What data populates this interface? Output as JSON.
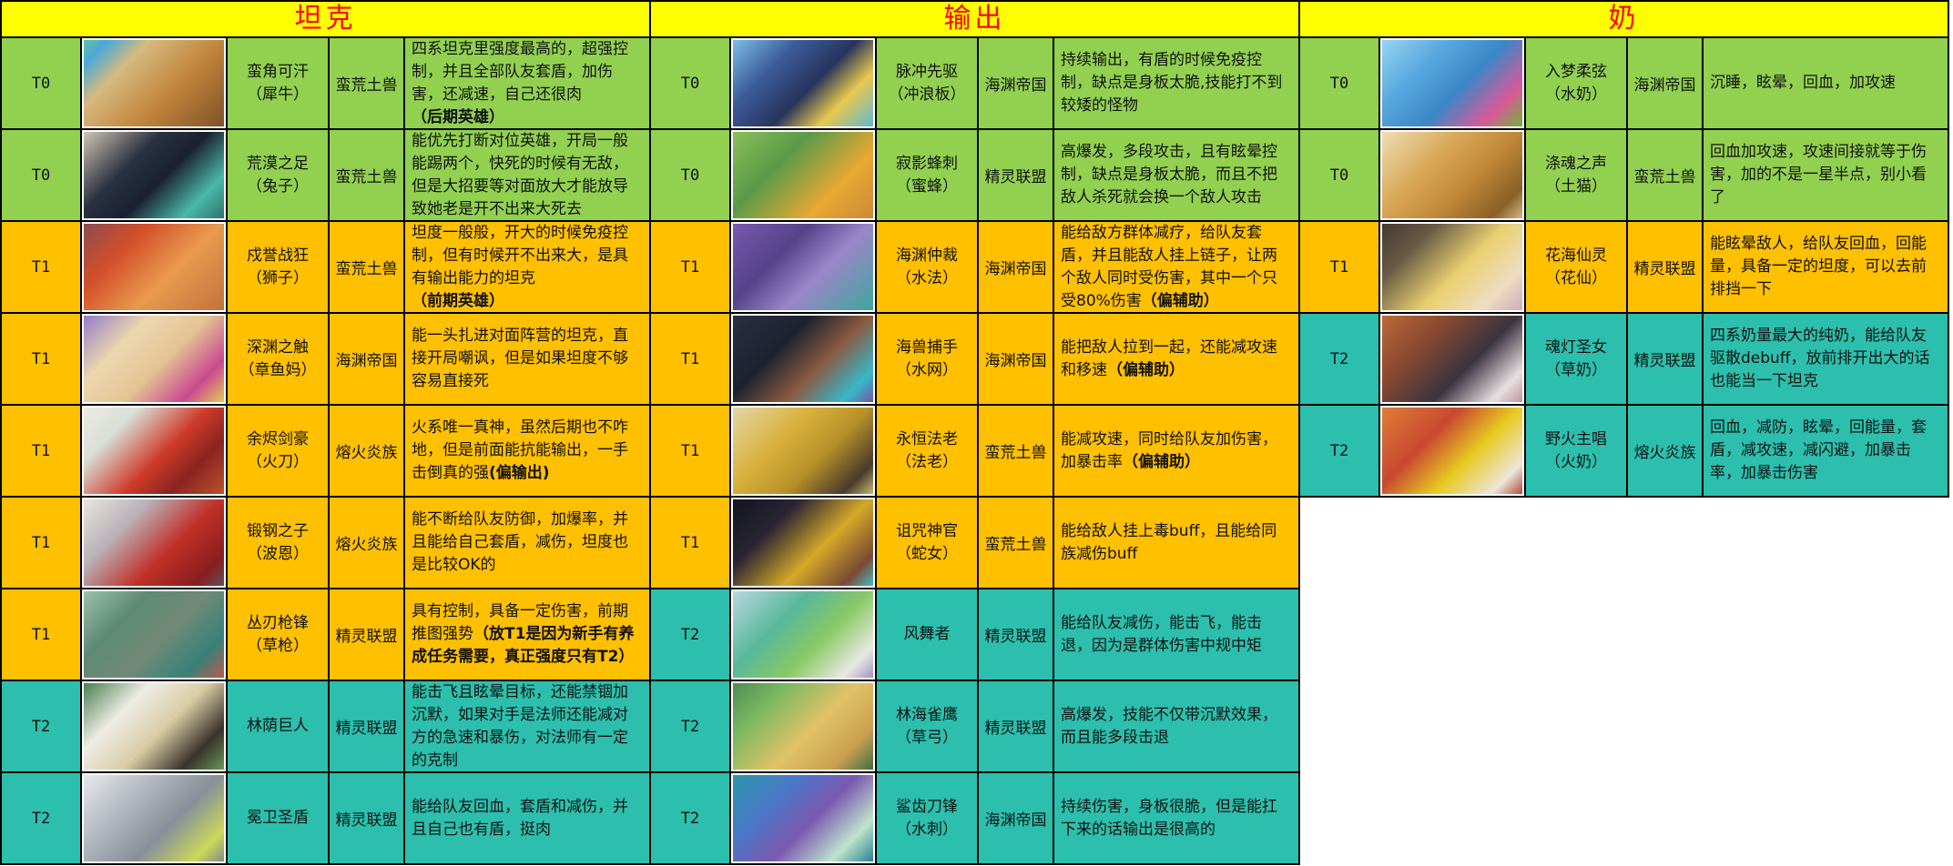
{
  "colors": {
    "t0": "#92D050",
    "t1": "#FFC000",
    "t2": "#2CBFAD",
    "header-bg": "#FFFF00",
    "header-text": "#FF0000",
    "grid-border": "#000000",
    "text": "#111111",
    "page-bg": "#FFFFFF"
  },
  "sections": [
    {
      "title": "坦克",
      "rows": [
        {
          "tier": "T0",
          "name": "蛮角可汗",
          "alias": "（犀牛）",
          "faction": "蛮荒土兽",
          "desc": "四系坦克里强度最高的，超强控制，并且全部队友套盾，加伤害，还减速，自己还很肉\n",
          "desc_bold": "（后期英雄）",
          "portrait_css": "background:linear-gradient(135deg,#63c79b 0%,#4aa9d8 12%,#d6b97e 30%,#c2863d 60%,#7d5026 100%)"
        },
        {
          "tier": "T0",
          "name": "荒漠之足",
          "alias": "（兔子）",
          "faction": "蛮荒土兽",
          "desc": "能优先打断对位英雄，开局一般能踢两个，快死的时候有无敌，但是大招要等对面放大才能放导致她老是开不出来大死去",
          "desc_bold": "",
          "portrait_css": "background:linear-gradient(135deg,#d8cdb9 0%,#2a3140 35%,#1a2030 55%,#49b8ab 80%,#2e6e66 100%)"
        },
        {
          "tier": "T1",
          "name": "戍誉战狂",
          "alias": "（狮子）",
          "faction": "蛮荒土兽",
          "desc": "坦度一般般，开大的时候免疫控制，但有时候开不出来大，是具有输出能力的坦克\n",
          "desc_bold": "（前期英雄）",
          "portrait_css": "background:linear-gradient(135deg,#8a4a52 0%,#d4502a 30%,#e89a4e 60%,#c2703a 100%)"
        },
        {
          "tier": "T1",
          "name": "深渊之触",
          "alias": "（章鱼妈）",
          "faction": "海渊帝国",
          "desc": "能一头扎进对面阵营的坦克，直接开局嘲讽，但是如果坦度不够容易直接死",
          "desc_bold": "",
          "portrait_css": "background:linear-gradient(135deg,#8f77c9 0%,#ecd7ae 30%,#e3c592 55%,#c9498f 80%,#e8d24e 100%)"
        },
        {
          "tier": "T1",
          "name": "余烬剑豪",
          "alias": "（火刀）",
          "faction": "熔火炎族",
          "desc": "火系唯一真神，虽然后期也不咋地，但是前面能抗能输出，一手击倒真的强",
          "desc_bold": "(偏输出)",
          "portrait_css": "background:linear-gradient(135deg,#f0ebe0 0%,#d8dfd8 25%,#cf3b2a 55%,#8a2420 75%,#c2542c 100%)"
        },
        {
          "tier": "T1",
          "name": "锻钢之子",
          "alias": "（波恩）",
          "faction": "熔火炎族",
          "desc": "能不断给队友防御，加爆率，并且能给自己套盾，减伤，坦度也是比较OK的",
          "desc_bold": "",
          "portrait_css": "background:linear-gradient(135deg,#ece8e0 0%,#b8b2b8 30%,#c03028 60%,#8a1e1e 85%,#5c5560 100%)"
        },
        {
          "tier": "T1",
          "name": "丛刃枪锋",
          "alias": "（草枪）",
          "faction": "精灵联盟",
          "desc": "具有控制，具备一定伤害，前期推图强势",
          "desc_bold": "（放T1是因为新手有养成任务需要，真正强度只有T2）",
          "portrait_css": "background:linear-gradient(135deg,#9ec4ad 0%,#5d8a74 30%,#728a78 55%,#388278 80%,#c25848 100%)"
        },
        {
          "tier": "T2",
          "name": "林荫巨人",
          "alias": "",
          "faction": "精灵联盟",
          "desc": "能击飞且眩晕目标，还能禁锢加沉默，如果对手是法师还能减对方的急速和暴伤，对法师有一定的克制",
          "desc_bold": "",
          "portrait_css": "background:linear-gradient(135deg,#3d7a48 0%,#efece4 30%,#d9cca6 55%,#3a332c 80%,#6aa05a 100%)"
        },
        {
          "tier": "T2",
          "name": "冕卫圣盾",
          "alias": "",
          "faction": "精灵联盟",
          "desc": "能给队友回血，套盾和减伤，并且自己也有盾，挺肉",
          "desc_bold": "",
          "portrait_css": "background:linear-gradient(135deg,#e9ebee 0%,#aeb4bc 35%,#888f98 60%,#c9d85a 85%,#7a828c 100%)"
        }
      ]
    },
    {
      "title": "输出",
      "rows": [
        {
          "tier": "T0",
          "name": "脉冲先驱",
          "alias": "（冲浪板）",
          "faction": "海渊帝国",
          "desc": "持续输出，有盾的时候免疫控制，缺点是身板太脆,技能打不到较矮的怪物",
          "desc_bold": "",
          "portrait_css": "background:linear-gradient(135deg,#7fc3e8 0%,#3c5c9a 30%,#28345c 55%,#e8c84e 75%,#57b8d8 100%)"
        },
        {
          "tier": "T0",
          "name": "寂影蜂刺",
          "alias": "（蜜蜂）",
          "faction": "精灵联盟",
          "desc": "高爆发，多段攻击，且有眩晕控制，缺点是身板太脆，而且不把敌人杀死就会换一个敌人攻击",
          "desc_bold": "",
          "portrait_css": "background:linear-gradient(135deg,#8cc05c 0%,#5a9a48 35%,#e8a832 70%,#c8883a 100%)"
        },
        {
          "tier": "T1",
          "name": "海渊仲裁",
          "alias": "（水法）",
          "faction": "海渊帝国",
          "desc": "能给敌方群体减疗，给队友套盾，并且能敌人挂上链子，让两个敌人同时受伤害，其中一个只受80%伤害",
          "desc_bold": "（偏辅助）",
          "portrait_css": "background:linear-gradient(135deg,#7a5ab0 0%,#54448a 35%,#9a86c8 60%,#3aa89c 100%)"
        },
        {
          "tier": "T1",
          "name": "海兽捕手",
          "alias": "（水网）",
          "faction": "海渊帝国",
          "desc": "能把敌人拉到一起，还能减攻速和移速",
          "desc_bold": "（偏辅助）",
          "portrait_css": "background:linear-gradient(135deg,#2a3040 0%,#1c2230 35%,#8a5a40 60%,#38b8c8 85%,#7a4aa0 100%)"
        },
        {
          "tier": "T1",
          "name": "永恒法老",
          "alias": "（法老）",
          "faction": "蛮荒土兽",
          "desc": "能减攻速，同时给队友加伤害，加暴击率",
          "desc_bold": "（偏辅助）",
          "portrait_css": "background:linear-gradient(135deg,#e6d7ae 0%,#d8b23c 35%,#b89028 60%,#4a3c2c 85%,#d8c878 100%)"
        },
        {
          "tier": "T1",
          "name": "诅咒神官",
          "alias": "（蛇女）",
          "faction": "蛮荒土兽",
          "desc": "能给敌人挂上毒buff，且能给同族减伤buff",
          "desc_bold": "",
          "portrait_css": "background:linear-gradient(135deg,#10141f 0%,#2a2433 30%,#d4a828 60%,#7a4a34 85%,#3ac8d8 100%)"
        },
        {
          "tier": "T2",
          "name": "风舞者",
          "alias": "",
          "faction": "精灵联盟",
          "desc": "能给队友减伤，能击飞，能击退，因为是群体伤害中规中矩",
          "desc_bold": "",
          "portrait_css": "background:linear-gradient(135deg,#bcd8e0 0%,#58b89a 35%,#88c864 60%,#e8e8e0 85%,#9a8ac8 100%)"
        },
        {
          "tier": "T2",
          "name": "林海雀鹰",
          "alias": "（草弓）",
          "faction": "精灵联盟",
          "desc": "高爆发，技能不仅带沉默效果，而且能多段击退",
          "desc_bold": "",
          "portrait_css": "background:linear-gradient(135deg,#4a8a50 0%,#7ab860 25%,#e0c268 55%,#caa050 80%,#356b40 100%)"
        },
        {
          "tier": "T2",
          "name": "鲨齿刀锋",
          "alias": "（水刺）",
          "faction": "海渊帝国",
          "desc": "持续伤害，身板很脆，但是能扛下来的话输出是很高的",
          "desc_bold": "",
          "portrait_css": "background:linear-gradient(135deg,#2898a8 0%,#4a78c8 30%,#7a58b0 55%,#bfe4cc 80%,#1d7a8c 100%)"
        }
      ]
    },
    {
      "title": "奶",
      "rows": [
        {
          "tier": "T0",
          "name": "入梦柔弦",
          "alias": "（水奶）",
          "faction": "海渊帝国",
          "desc": "沉睡，眩晕，回血，加攻速",
          "desc_bold": "",
          "portrait_css": "background:linear-gradient(135deg,#9ad8f0 0%,#58a8e0 30%,#3a88c8 55%,#d85898 80%,#68b830 100%)"
        },
        {
          "tier": "T0",
          "name": "涤魂之声",
          "alias": "（土猫）",
          "faction": "蛮荒土兽",
          "desc": "回血加攻速，攻速间接就等于伤害，加的不是一星半点，别小看了",
          "desc_bold": "",
          "portrait_css": "background:linear-gradient(135deg,#f0e0b8 0%,#d8a858 35%,#c08838 60%,#8a6028 85%,#d8c090 100%)"
        },
        {
          "tier": "T1",
          "name": "花海仙灵",
          "alias": "（花仙）",
          "faction": "精灵联盟",
          "desc": "能眩晕敌人，给队友回血，回能量，具备一定的坦度，可以去前排挡一下",
          "desc_bold": "",
          "portrait_css": "background:linear-gradient(135deg,#423830 0%,#6a5a44 25%,#e8d070 55%,#f0dcc0 80%,#caa8c0 100%)"
        },
        {
          "tier": "T2",
          "name": "魂灯圣女",
          "alias": "（草奶）",
          "faction": "精灵联盟",
          "desc": "四系奶量最大的纯奶，能给队友驱散debuff，放前排开出大的话也能当一下坦克",
          "desc_bold": "",
          "portrait_css": "background:linear-gradient(135deg,#c06a3a 0%,#8a4a30 30%,#3a3440 60%,#e8e0e0 85%,#b88a98 100%)"
        },
        {
          "tier": "T2",
          "name": "野火主唱",
          "alias": "（火奶）",
          "faction": "熔火炎族",
          "desc": "回血，减防，眩晕，回能量，套盾，减攻速，减闪避，加暴击率，加暴击伤害",
          "desc_bold": "",
          "portrait_css": "background:linear-gradient(135deg,#e08038 0%,#c84830 35%,#e8c820 60%,#ece6da 85%,#a83828 100%)"
        }
      ]
    }
  ]
}
